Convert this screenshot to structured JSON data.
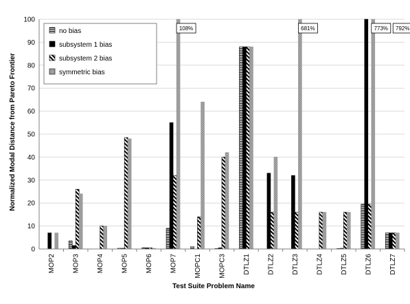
{
  "chart_data": {
    "type": "bar",
    "title": "",
    "xlabel": "Test Suite Problem Name",
    "ylabel": "Normalized Modal Distance from Pareto Frontier",
    "ylim": [
      0,
      100
    ],
    "yticks": [
      0,
      10,
      20,
      30,
      40,
      50,
      60,
      70,
      80,
      90,
      100
    ],
    "grid": true,
    "legend_position": "top-left",
    "categories": [
      "MOP2",
      "MOP3",
      "MOP4",
      "MOP5",
      "MOP6",
      "MOP7",
      "MOPC1",
      "MOPC3",
      "DTLZ1",
      "DTLZ2",
      "DTLZ3",
      "DTLZ4",
      "DTLZ5",
      "DTLZ6",
      "DTLZ7"
    ],
    "series": [
      {
        "name": "no bias",
        "pattern": "horizontal-stripes",
        "values": [
          0,
          3.5,
          0,
          0.3,
          0.5,
          9,
          1,
          0.2,
          88,
          0,
          0,
          0,
          0.2,
          19.5,
          7
        ]
      },
      {
        "name": "subsystem 1 bias",
        "pattern": "solid-black",
        "values": [
          7,
          1.5,
          0,
          0.3,
          0.5,
          55,
          0,
          0.5,
          88,
          33,
          32,
          0,
          0.3,
          100,
          7
        ]
      },
      {
        "name": "subsystem 2 bias",
        "pattern": "diagonal-stripes",
        "values": [
          0,
          26,
          10,
          48.5,
          0.5,
          32,
          14,
          40,
          88,
          16,
          16,
          16,
          16,
          19.5,
          7
        ]
      },
      {
        "name": "symmetric bias",
        "pattern": "gray-dots",
        "values": [
          7,
          24,
          10,
          48,
          0.3,
          100,
          64,
          42,
          88,
          40,
          100,
          16,
          16,
          100,
          7
        ]
      }
    ],
    "annotations": [
      {
        "category": "MOP7",
        "text": "108%"
      },
      {
        "category": "DTLZ3",
        "text": "681%"
      },
      {
        "category": "DTLZ6",
        "text": "773%"
      },
      {
        "category": "DTLZ7",
        "text": "792%"
      }
    ]
  }
}
